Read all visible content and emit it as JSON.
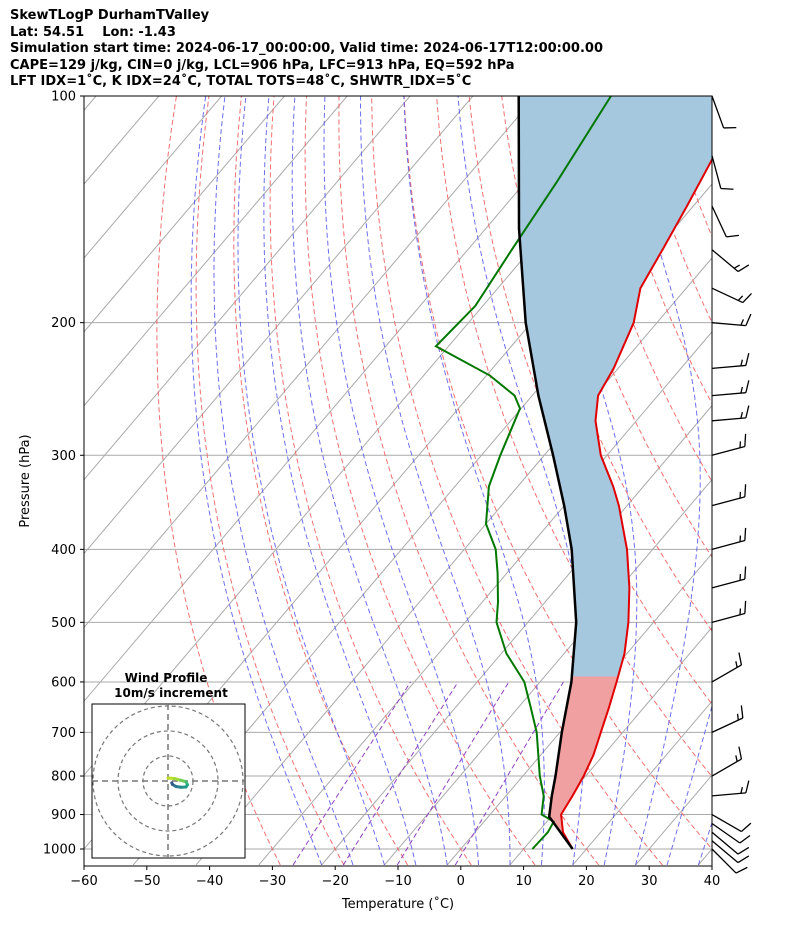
{
  "header": {
    "title": "SkewTLogP DurhamTValley",
    "location": "Lat: 54.51    Lon: -1.43",
    "times": "Simulation start time: 2024-06-17_00:00:00, Valid time: 2024-06-17T12:00:00.00",
    "params": "CAPE=129 j/kg, CIN=0 j/kg, LCL=906 hPa, LFC=913 hPa, EQ=592 hPa",
    "indices": "LFT IDX=1˚C, K IDX=24˚C, TOTAL TOTS=48˚C, SHWTR_IDX=5˚C"
  },
  "colors": {
    "temperature": "#e00000",
    "dewpoint": "#007800",
    "parcel": "#000000",
    "cape_fill": "#a6c8df",
    "cin_fill": "#f0a0a0",
    "dry_adiabat": "#f06060",
    "moist_adiabat": "#5555ee",
    "mixing_ratio": "#9040c0",
    "isotherm": "#aaaaaa"
  },
  "chart_data": {
    "type": "skewt",
    "xlabel": "Temperature (˚C)",
    "ylabel": "Pressure (hPa)",
    "xlim": [
      -60,
      40
    ],
    "ylim": [
      1050,
      100
    ],
    "x_ticks": [
      "−60",
      "−50",
      "−40",
      "−30",
      "−20",
      "−10",
      "0",
      "10",
      "20",
      "30",
      "40"
    ],
    "x_tick_values": [
      -60,
      -50,
      -40,
      -30,
      -20,
      -10,
      0,
      10,
      20,
      30,
      40
    ],
    "y_ticks": [
      "100",
      "200",
      "300",
      "400",
      "500",
      "600",
      "700",
      "800",
      "900",
      "1000"
    ],
    "y_tick_values": [
      100,
      200,
      300,
      400,
      500,
      600,
      700,
      800,
      900,
      1000
    ],
    "temperature": [
      {
        "p": 1000,
        "t": 17.8
      },
      {
        "p": 950,
        "t": 14.0
      },
      {
        "p": 900,
        "t": 11.3
      },
      {
        "p": 850,
        "t": 10.6
      },
      {
        "p": 800,
        "t": 9.7
      },
      {
        "p": 750,
        "t": 8.4
      },
      {
        "p": 700,
        "t": 6.5
      },
      {
        "p": 650,
        "t": 4.5
      },
      {
        "p": 600,
        "t": 2.2
      },
      {
        "p": 550,
        "t": -0.4
      },
      {
        "p": 500,
        "t": -4.0
      },
      {
        "p": 450,
        "t": -8.5
      },
      {
        "p": 400,
        "t": -14.1
      },
      {
        "p": 350,
        "t": -21.3
      },
      {
        "p": 330,
        "t": -24.8
      },
      {
        "p": 300,
        "t": -31.0
      },
      {
        "p": 270,
        "t": -36.5
      },
      {
        "p": 250,
        "t": -39.5
      },
      {
        "p": 230,
        "t": -40.7
      },
      {
        "p": 200,
        "t": -43.7
      },
      {
        "p": 180,
        "t": -47.3
      },
      {
        "p": 160,
        "t": -49.0
      },
      {
        "p": 140,
        "t": -51.0
      },
      {
        "p": 120,
        "t": -53.5
      },
      {
        "p": 100,
        "t": -56.5
      }
    ],
    "dewpoint": [
      {
        "p": 1000,
        "t": 11.4
      },
      {
        "p": 950,
        "t": 11.6
      },
      {
        "p": 920,
        "t": 11.1
      },
      {
        "p": 900,
        "t": 8.2
      },
      {
        "p": 850,
        "t": 6.0
      },
      {
        "p": 800,
        "t": 2.7
      },
      {
        "p": 700,
        "t": -3.7
      },
      {
        "p": 650,
        "t": -7.9
      },
      {
        "p": 600,
        "t": -12.5
      },
      {
        "p": 550,
        "t": -19.2
      },
      {
        "p": 500,
        "t": -25.0
      },
      {
        "p": 470,
        "t": -27.5
      },
      {
        "p": 430,
        "t": -31.5
      },
      {
        "p": 400,
        "t": -35.0
      },
      {
        "p": 370,
        "t": -40.0
      },
      {
        "p": 330,
        "t": -44.6
      },
      {
        "p": 300,
        "t": -47.0
      },
      {
        "p": 260,
        "t": -50.2
      },
      {
        "p": 250,
        "t": -52.8
      },
      {
        "p": 235,
        "t": -59.5
      },
      {
        "p": 215,
        "t": -72.0
      },
      {
        "p": 190,
        "t": -71.2
      },
      {
        "p": 160,
        "t": -73.0
      },
      {
        "p": 130,
        "t": -75.0
      },
      {
        "p": 100,
        "t": -78.0
      }
    ],
    "parcel": [
      {
        "p": 1000,
        "t": 17.8
      },
      {
        "p": 906,
        "t": 9.7
      },
      {
        "p": 850,
        "t": 7.3
      },
      {
        "p": 800,
        "t": 5.2
      },
      {
        "p": 700,
        "t": 0.3
      },
      {
        "p": 600,
        "t": -5.0
      },
      {
        "p": 500,
        "t": -12.3
      },
      {
        "p": 400,
        "t": -22.9
      },
      {
        "p": 350,
        "t": -30.0
      },
      {
        "p": 300,
        "t": -38.6
      },
      {
        "p": 250,
        "t": -49.0
      },
      {
        "p": 200,
        "t": -60.9
      },
      {
        "p": 150,
        "t": -74.7
      },
      {
        "p": 100,
        "t": -92.7
      }
    ],
    "wind_barbs": [
      {
        "p": 1000,
        "speed_kt": 10,
        "dir_deg": 225
      },
      {
        "p": 975,
        "speed_kt": 10,
        "dir_deg": 230
      },
      {
        "p": 950,
        "speed_kt": 10,
        "dir_deg": 230
      },
      {
        "p": 925,
        "speed_kt": 10,
        "dir_deg": 235
      },
      {
        "p": 900,
        "speed_kt": 10,
        "dir_deg": 240
      },
      {
        "p": 850,
        "speed_kt": 15,
        "dir_deg": 275
      },
      {
        "p": 800,
        "speed_kt": 15,
        "dir_deg": 300
      },
      {
        "p": 700,
        "speed_kt": 15,
        "dir_deg": 295
      },
      {
        "p": 600,
        "speed_kt": 15,
        "dir_deg": 300
      },
      {
        "p": 500,
        "speed_kt": 15,
        "dir_deg": 285
      },
      {
        "p": 450,
        "speed_kt": 15,
        "dir_deg": 285
      },
      {
        "p": 400,
        "speed_kt": 15,
        "dir_deg": 285
      },
      {
        "p": 350,
        "speed_kt": 15,
        "dir_deg": 285
      },
      {
        "p": 300,
        "speed_kt": 15,
        "dir_deg": 285
      },
      {
        "p": 270,
        "speed_kt": 15,
        "dir_deg": 275
      },
      {
        "p": 250,
        "speed_kt": 15,
        "dir_deg": 275
      },
      {
        "p": 230,
        "speed_kt": 15,
        "dir_deg": 275
      },
      {
        "p": 200,
        "speed_kt": 15,
        "dir_deg": 265
      },
      {
        "p": 180,
        "speed_kt": 15,
        "dir_deg": 245
      },
      {
        "p": 160,
        "speed_kt": 15,
        "dir_deg": 230
      },
      {
        "p": 140,
        "speed_kt": 10,
        "dir_deg": 205
      },
      {
        "p": 120,
        "speed_kt": 10,
        "dir_deg": 195
      },
      {
        "p": 100,
        "speed_kt": 10,
        "dir_deg": 200
      }
    ],
    "inset": {
      "title": "Wind Profile",
      "subtitle": "10m/s increment",
      "rings_ms": [
        10,
        20,
        30
      ],
      "hodograph": [
        [
          0.0,
          1.2
        ],
        [
          2.5,
          1.0
        ],
        [
          5.0,
          0.3
        ],
        [
          7.2,
          -0.3
        ],
        [
          7.8,
          -1.5
        ],
        [
          7.2,
          -2.4
        ],
        [
          5.2,
          -2.5
        ],
        [
          3.2,
          -2.2
        ],
        [
          1.8,
          -1.4
        ],
        [
          1.5,
          -0.7
        ]
      ]
    }
  }
}
